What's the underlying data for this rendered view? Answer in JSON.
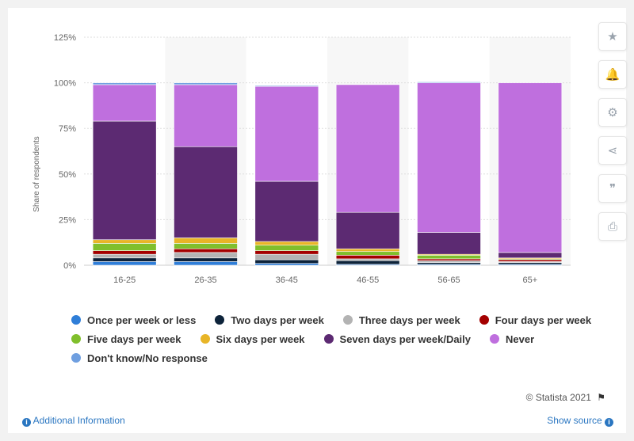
{
  "chart_data": {
    "type": "stacked-bar",
    "title": "",
    "xlabel": "",
    "ylabel": "Share of respondents",
    "ylim": [
      0,
      125
    ],
    "yticks": [
      "0%",
      "25%",
      "50%",
      "75%",
      "100%",
      "125%"
    ],
    "categories": [
      "16-25",
      "26-35",
      "36-45",
      "46-55",
      "56-65",
      "65+"
    ],
    "series": [
      {
        "name": "Once per week or less",
        "color": "#2f7ed8",
        "values": [
          2,
          2,
          1,
          0.5,
          0.5,
          0.5
        ]
      },
      {
        "name": "Two days per week",
        "color": "#0d233a",
        "values": [
          2,
          2,
          2,
          2,
          1,
          1
        ]
      },
      {
        "name": "Three days per week",
        "color": "#b3b3b3",
        "values": [
          2,
          3,
          3,
          1,
          1,
          0.5
        ]
      },
      {
        "name": "Four days per week",
        "color": "#a40000",
        "values": [
          2,
          2,
          2,
          2,
          1,
          1
        ]
      },
      {
        "name": "Five days per week",
        "color": "#80bf2c",
        "values": [
          4,
          3,
          3,
          2,
          2,
          0.5
        ]
      },
      {
        "name": "Six days per week",
        "color": "#e8b527",
        "values": [
          2,
          3,
          2,
          1.5,
          0.5,
          0.5
        ]
      },
      {
        "name": "Seven days per week/Daily",
        "color": "#5c2a72",
        "values": [
          65,
          50,
          33,
          20,
          12,
          3
        ]
      },
      {
        "name": "Never",
        "color": "#bf6fde",
        "values": [
          20,
          34,
          52,
          70,
          82,
          93
        ]
      },
      {
        "name": "Don't know/No response",
        "color": "#6f9fe0",
        "values": [
          1,
          1,
          0.5,
          0,
          0.5,
          0
        ]
      }
    ],
    "grid": true,
    "legend": "bottom"
  },
  "toolbar": {
    "buttons": [
      {
        "icon": "star-icon",
        "glyph": "★"
      },
      {
        "icon": "bell-icon",
        "glyph": "🔔"
      },
      {
        "icon": "gear-icon",
        "glyph": "⚙"
      },
      {
        "icon": "share-icon",
        "glyph": "⋖"
      },
      {
        "icon": "quote-icon",
        "glyph": "❞"
      },
      {
        "icon": "print-icon",
        "glyph": "⎙"
      }
    ]
  },
  "credit": {
    "text": "© Statista 2021",
    "flag_glyph": "⚑"
  },
  "footer": {
    "additional_info": "Additional Information",
    "show_source": "Show source",
    "info_glyph": "i"
  }
}
